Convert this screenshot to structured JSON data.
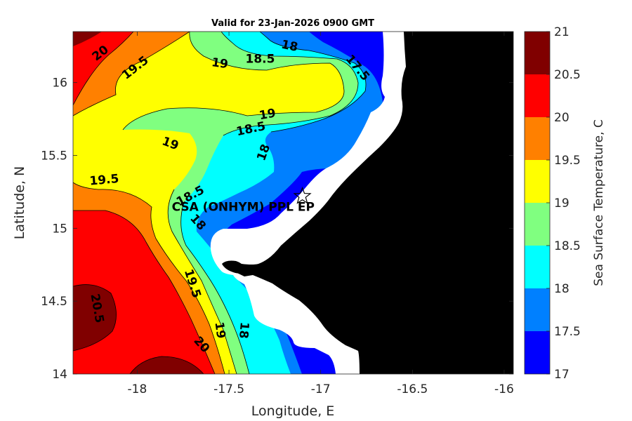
{
  "chart_data": {
    "type": "heatmap",
    "title": "Valid for 23-Jan-2026 0900 GMT",
    "xlabel": "Longitude, E",
    "ylabel": "Latitude, N",
    "xlim": [
      -18.35,
      -15.95
    ],
    "ylim": [
      14.0,
      16.35
    ],
    "x_ticks": [
      -18,
      -17.5,
      -17,
      -16.5,
      -16
    ],
    "x_tick_labels": [
      "-18",
      "-17.5",
      "-17",
      "-16.5",
      "-16"
    ],
    "y_ticks": [
      14,
      14.5,
      15,
      15.5,
      16
    ],
    "y_tick_labels": [
      "14",
      "14.5",
      "15",
      "15.5",
      "16"
    ],
    "colorbar": {
      "label": "Sea Surface Temperature, C",
      "levels": [
        17,
        17.5,
        18,
        18.5,
        19,
        19.5,
        20,
        20.5,
        21
      ],
      "tick_labels": [
        "17",
        "17.5",
        "18",
        "18.5",
        "19",
        "19.5",
        "20",
        "20.5",
        "21"
      ],
      "colors": [
        "#0000ff",
        "#0080ff",
        "#00ffff",
        "#80ff80",
        "#ffff00",
        "#ff8000",
        "#ff0000",
        "#800000"
      ]
    },
    "contour_labels": [
      {
        "text": "20",
        "lon": -18.2,
        "lat": 16.2
      },
      {
        "text": "19.5",
        "lon": -18.01,
        "lat": 16.1
      },
      {
        "text": "19",
        "lon": -17.55,
        "lat": 16.13
      },
      {
        "text": "18.5",
        "lon": -17.33,
        "lat": 16.16
      },
      {
        "text": "18",
        "lon": -17.17,
        "lat": 16.25
      },
      {
        "text": "17.5",
        "lon": -16.8,
        "lat": 16.1
      },
      {
        "text": "19",
        "lon": -17.29,
        "lat": 15.78
      },
      {
        "text": "18.5",
        "lon": -17.38,
        "lat": 15.68
      },
      {
        "text": "18",
        "lon": -17.31,
        "lat": 15.52
      },
      {
        "text": "19",
        "lon": -17.82,
        "lat": 15.58
      },
      {
        "text": "19.5",
        "lon": -18.18,
        "lat": 15.33
      },
      {
        "text": "18.5",
        "lon": -17.71,
        "lat": 15.22
      },
      {
        "text": "18",
        "lon": -17.67,
        "lat": 15.04
      },
      {
        "text": "19.5",
        "lon": -17.7,
        "lat": 14.62
      },
      {
        "text": "20.5",
        "lon": -18.22,
        "lat": 14.45
      },
      {
        "text": "20",
        "lon": -17.65,
        "lat": 14.2
      },
      {
        "text": "19",
        "lon": -17.55,
        "lat": 14.3
      },
      {
        "text": "18",
        "lon": -17.42,
        "lat": 14.3
      }
    ],
    "sites": [
      {
        "name": "CSA (ONHYM) PPL EP",
        "lon": -17.1,
        "lat": 15.22,
        "marker": "star"
      }
    ]
  }
}
